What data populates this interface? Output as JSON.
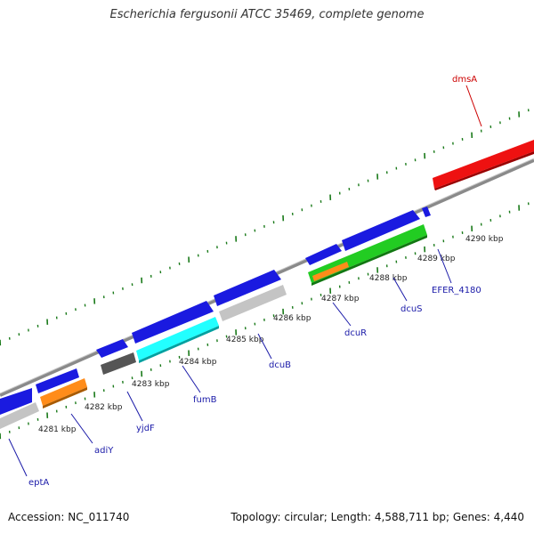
{
  "title": "Escherichia fergusonii ATCC 35469, complete genome",
  "footer": {
    "accession": "Accession: NC_011740",
    "summary": "Topology: circular; Length: 4,588,711 bp; Genes: 4,440"
  },
  "colors": {
    "backbone": "#8a8a8a",
    "tick": "#1a7a1a",
    "gene_label": "#1a1aa8",
    "highlight_label": "#cc0000"
  },
  "scale_ticks": [
    "4281 kbp",
    "4282 kbp",
    "4283 kbp",
    "4284 kbp",
    "4285 kbp",
    "4286 kbp",
    "4287 kbp",
    "4288 kbp",
    "4289 kbp",
    "4290 kbp"
  ],
  "genes": [
    {
      "name": "eptA",
      "color": "blue"
    },
    {
      "name": "adiY",
      "color": "blue"
    },
    {
      "name": "yjdF",
      "color": "blue"
    },
    {
      "name": "fumB",
      "color": "blue"
    },
    {
      "name": "dcuB",
      "color": "blue"
    },
    {
      "name": "dcuR",
      "color": "blue"
    },
    {
      "name": "dcuS",
      "color": "blue"
    },
    {
      "name": "EFER_4180",
      "color": "blue"
    },
    {
      "name": "dmsA",
      "color": "red"
    }
  ]
}
